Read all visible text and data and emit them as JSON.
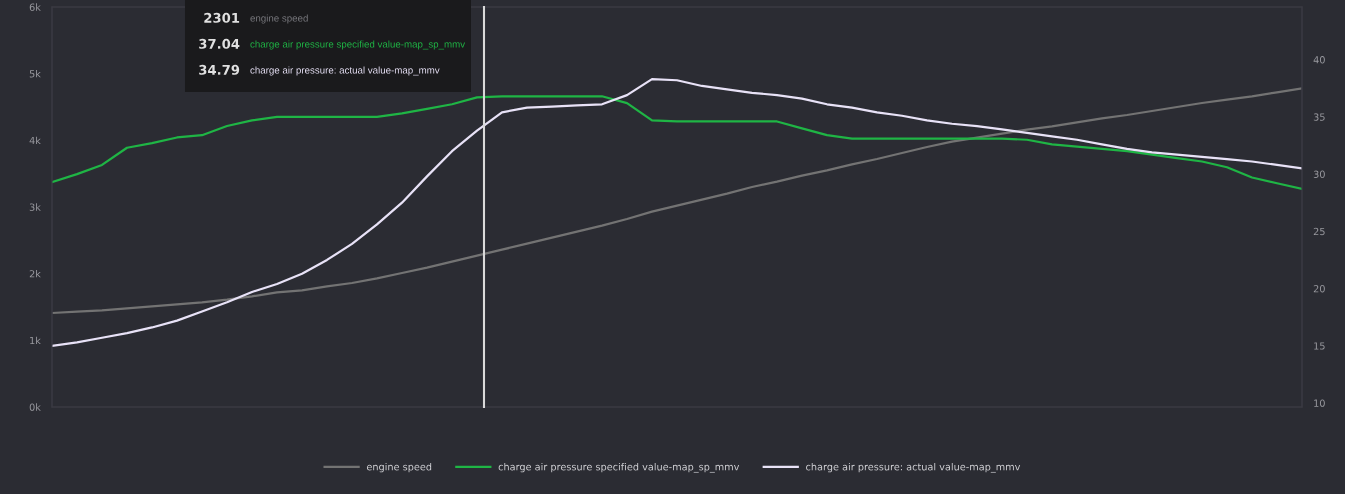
{
  "chart_data": {
    "type": "line",
    "categories": [
      null,
      null,
      null,
      null,
      null,
      null,
      null,
      null,
      null,
      null,
      null,
      null,
      null,
      null,
      null,
      null,
      null,
      null,
      null,
      null,
      null,
      null,
      null,
      null,
      null,
      null,
      null,
      null,
      null,
      null,
      null,
      null,
      null,
      null,
      null,
      null,
      null,
      null,
      null,
      null,
      null,
      null,
      null,
      null,
      null,
      null,
      null,
      null,
      null,
      null,
      null
    ],
    "series": [
      {
        "name": "engine speed",
        "color": "#737373",
        "values": [
          1410,
          1430,
          1450,
          1480,
          1510,
          1540,
          1570,
          1610,
          1660,
          1720,
          1750,
          1810,
          1860,
          1930,
          2010,
          2090,
          2180,
          2270,
          2360,
          2450,
          2540,
          2630,
          2720,
          2820,
          2930,
          3020,
          3110,
          3200,
          3300,
          3380,
          3470,
          3550,
          3640,
          3720,
          3810,
          3900,
          3980,
          4040,
          4100,
          4160,
          4210,
          4270,
          4330,
          4380,
          4440,
          4500,
          4560,
          4610,
          4660,
          4720,
          4780
        ]
      },
      {
        "name": "charge air pressure specified value-map_sp_mmv",
        "color": "#1fb545",
        "axis": "y2",
        "values": [
          29.3,
          30.0,
          30.8,
          32.3,
          32.7,
          33.2,
          33.4,
          34.2,
          34.7,
          35.0,
          35.0,
          35.0,
          35.0,
          35.0,
          35.3,
          35.7,
          36.1,
          36.7,
          36.8,
          36.8,
          36.8,
          36.8,
          36.8,
          36.2,
          34.7,
          34.6,
          34.6,
          34.6,
          34.6,
          34.6,
          34.0,
          33.4,
          33.1,
          33.1,
          33.1,
          33.1,
          33.1,
          33.1,
          33.1,
          33.0,
          32.6,
          32.4,
          32.2,
          32.0,
          31.7,
          31.4,
          31.1,
          30.6,
          29.7,
          29.2,
          28.7
        ]
      },
      {
        "name": "charge air pressure: actual value-map_mmv",
        "color": "#e8e2f7",
        "axis": "y2",
        "values": [
          15.0,
          15.3,
          15.7,
          16.1,
          16.6,
          17.2,
          18.0,
          18.8,
          19.7,
          20.4,
          21.3,
          22.5,
          23.9,
          25.6,
          27.5,
          29.8,
          32.0,
          33.8,
          35.4,
          35.8,
          35.9,
          36.0,
          36.1,
          36.9,
          38.3,
          38.2,
          37.7,
          37.4,
          37.1,
          36.9,
          36.6,
          36.1,
          35.8,
          35.4,
          35.1,
          34.7,
          34.4,
          34.2,
          33.9,
          33.6,
          33.3,
          33.0,
          32.6,
          32.2,
          31.9,
          31.7,
          31.5,
          31.3,
          31.1,
          30.8,
          30.5
        ]
      }
    ],
    "ylim": [
      0,
      6000
    ],
    "yticks": [
      {
        "value": 0,
        "label": "0k"
      },
      {
        "value": 1000,
        "label": "1k"
      },
      {
        "value": 2000,
        "label": "2k"
      },
      {
        "value": 3000,
        "label": "3k"
      },
      {
        "value": 4000,
        "label": "4k"
      },
      {
        "value": 5000,
        "label": "5k"
      },
      {
        "value": 6000,
        "label": "6k"
      }
    ],
    "y2lim": [
      9.65,
      44.6
    ],
    "y2ticks": [
      10,
      15,
      20,
      25,
      30,
      35,
      40
    ],
    "annotations": [
      "2301",
      "37.04",
      "34.79"
    ],
    "grid": false,
    "legend": "bottom",
    "marker": "none",
    "line_style": "solid"
  }
}
